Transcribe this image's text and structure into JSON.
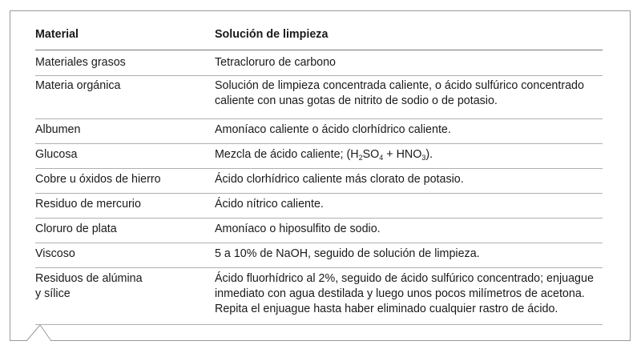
{
  "table": {
    "headers": [
      "Material",
      "Solución de limpieza"
    ],
    "rows": [
      {
        "material": "Materiales grasos",
        "solution": "Tetracloruro de carbono"
      },
      {
        "material": "Materia orgánica",
        "solution": [
          "Solución de limpieza concentrada caliente, o ácido sulfúrico concentrado",
          "caliente con unas gotas de nitrito de sodio o de potasio."
        ]
      },
      {
        "material": "Albumen",
        "solution": "Amoníaco caliente o ácido clorhídrico caliente."
      },
      {
        "material": "Glucosa",
        "solution_parts": [
          "Mezcla de ácido caliente; (H",
          "2",
          "SO",
          "4",
          " + HNO",
          "3",
          ")."
        ]
      },
      {
        "material": "Cobre u óxidos de hierro",
        "solution": "Ácido clorhídrico caliente más clorato de potasio."
      },
      {
        "material": "Residuo de mercurio",
        "solution": "Ácido nítrico caliente."
      },
      {
        "material": "Cloruro de plata",
        "solution": "Amoníaco o hiposulfito de sodio."
      },
      {
        "material": "Viscoso",
        "solution": "5 a 10% de NaOH, seguido de solución de limpieza."
      },
      {
        "material": [
          "Residuos de alúmina",
          "y sílice"
        ],
        "solution": [
          "Ácido fluorhídrico al 2%, seguido de ácido sulfúrico concentrado; enjuague",
          "inmediato con agua destilada y luego unos pocos milímetros de acetona.",
          "Repita el enjuague hasta haber eliminado cualquier rastro de ácido."
        ]
      }
    ]
  }
}
